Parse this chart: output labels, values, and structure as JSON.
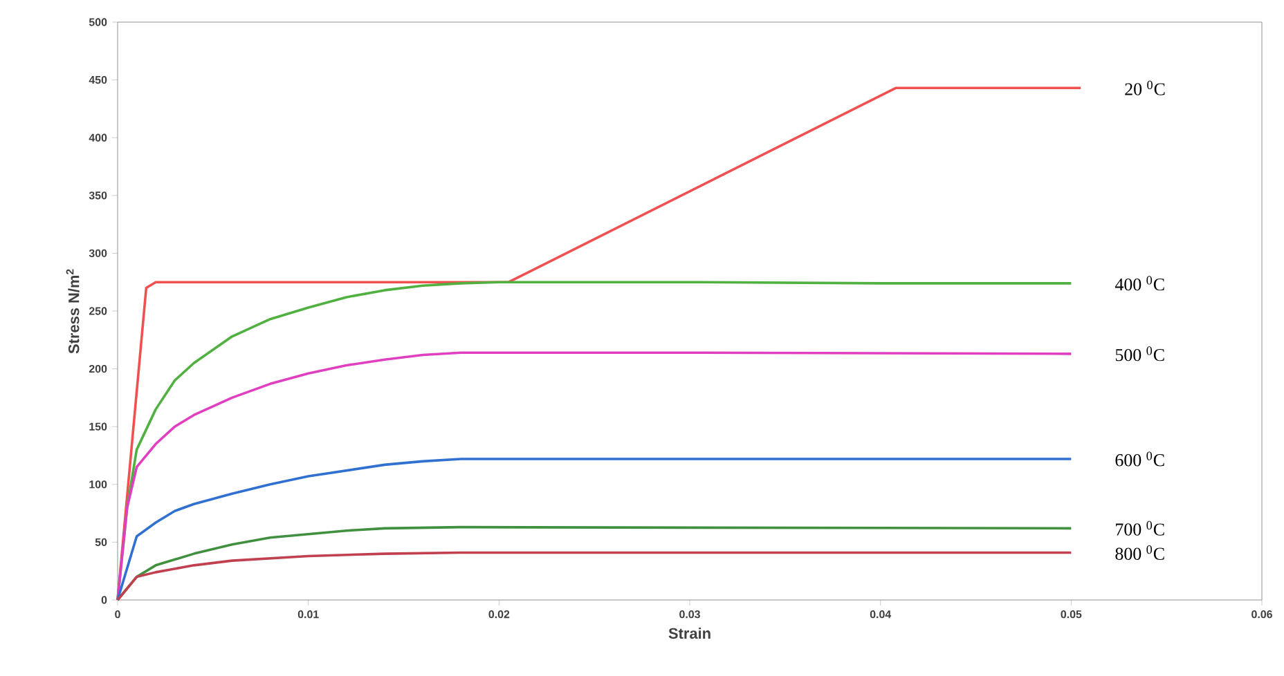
{
  "chart_data": {
    "type": "line",
    "xlabel": "Strain",
    "ylabel": "Stress  N/m$^{2}$",
    "xlim": [
      0,
      0.06
    ],
    "xticks": [
      0,
      0.01,
      0.02,
      0.03,
      0.04,
      0.05,
      0.06
    ],
    "ylim": [
      0,
      500
    ],
    "yticks": [
      0,
      50,
      100,
      150,
      200,
      250,
      300,
      350,
      400,
      450,
      500
    ],
    "grid": false,
    "legend": false,
    "marker": "none",
    "line_style": "solid",
    "series": [
      {
        "name": "20 $^{0}$C",
        "color": "#f05050",
        "x": [
          0,
          0.0015,
          0.002,
          0.0205,
          0.0408,
          0.0505
        ],
        "values": [
          0,
          270,
          275,
          275,
          443,
          443
        ]
      },
      {
        "name": "400 $^{0}$C",
        "color": "#50b040",
        "x": [
          0,
          0.0005,
          0.001,
          0.002,
          0.003,
          0.004,
          0.006,
          0.008,
          0.01,
          0.012,
          0.014,
          0.016,
          0.018,
          0.02,
          0.03,
          0.04,
          0.05
        ],
        "values": [
          0,
          80,
          130,
          165,
          190,
          205,
          228,
          243,
          253,
          262,
          268,
          272,
          274,
          275,
          275,
          274,
          274
        ]
      },
      {
        "name": "500 $^{0}$C",
        "color": "#e040c0",
        "x": [
          0,
          0.0005,
          0.001,
          0.002,
          0.003,
          0.004,
          0.006,
          0.008,
          0.01,
          0.012,
          0.014,
          0.016,
          0.018,
          0.03,
          0.05
        ],
        "values": [
          0,
          80,
          115,
          135,
          150,
          160,
          175,
          187,
          196,
          203,
          208,
          212,
          214,
          214,
          213
        ]
      },
      {
        "name": "600 $^{0}$C",
        "color": "#3070d0",
        "x": [
          0,
          0.001,
          0.002,
          0.003,
          0.004,
          0.006,
          0.008,
          0.01,
          0.012,
          0.014,
          0.016,
          0.018,
          0.03,
          0.05
        ],
        "values": [
          0,
          55,
          67,
          77,
          83,
          92,
          100,
          107,
          112,
          117,
          120,
          122,
          122,
          122
        ]
      },
      {
        "name": "700 $^{0}$C",
        "color": "#409040",
        "x": [
          0,
          0.001,
          0.002,
          0.004,
          0.006,
          0.008,
          0.01,
          0.012,
          0.014,
          0.018,
          0.05
        ],
        "values": [
          0,
          20,
          30,
          40,
          48,
          54,
          57,
          60,
          62,
          63,
          62
        ]
      },
      {
        "name": "800 $^{0}$C",
        "color": "#c04050",
        "x": [
          0,
          0.001,
          0.002,
          0.004,
          0.006,
          0.008,
          0.01,
          0.014,
          0.018,
          0.05
        ],
        "values": [
          0,
          20,
          24,
          30,
          34,
          36,
          38,
          40,
          41,
          41
        ]
      }
    ]
  }
}
